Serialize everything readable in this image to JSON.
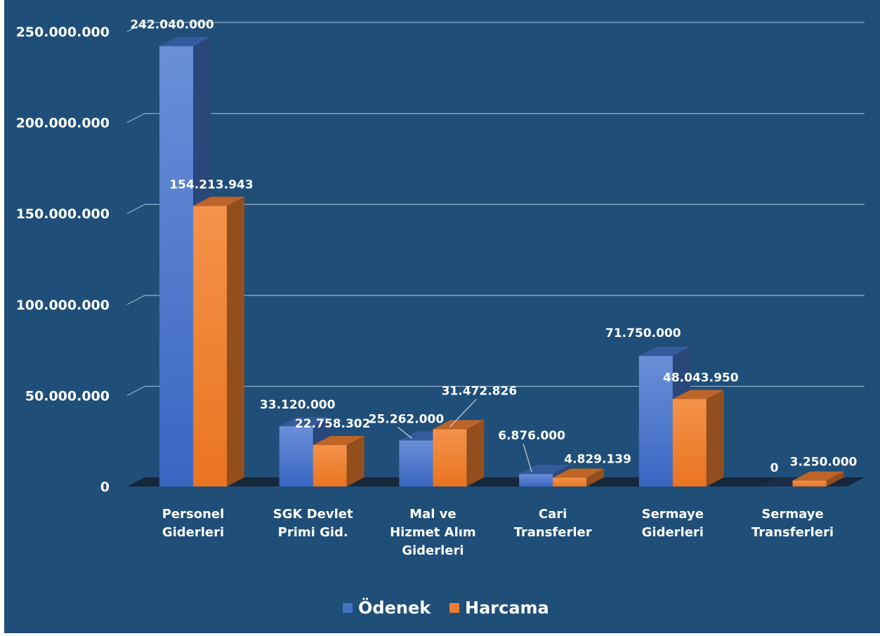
{
  "chart_data": {
    "type": "bar",
    "categories": [
      [
        "Personel",
        "Giderleri"
      ],
      [
        "SGK Devlet",
        "Primi Gid."
      ],
      [
        "Mal ve",
        "Hizmet Alım",
        "Giderleri"
      ],
      [
        "Cari",
        "Transferler"
      ],
      [
        "Sermaye",
        "Giderleri"
      ],
      [
        "Sermaye",
        "Transferleri"
      ]
    ],
    "series": [
      {
        "name": "Ödenek",
        "color": "#4472c4",
        "values": [
          242040000,
          33120000,
          25262000,
          6876000,
          71750000,
          0
        ],
        "labels": [
          "242.040.000",
          "33.120.000",
          "25.262.000",
          "6.876.000",
          "71.750.000",
          "0"
        ]
      },
      {
        "name": "Harcama",
        "color": "#ed7d31",
        "values": [
          154213943,
          22758302,
          31472826,
          4829139,
          48043950,
          3250000
        ],
        "labels": [
          "154.213.943",
          "22.758.302",
          "31.472.826",
          "4.829.139",
          "48.043.950",
          "3.250.000"
        ]
      }
    ],
    "ylim": [
      0,
      250000000
    ],
    "yticks": [
      0,
      50000000,
      100000000,
      150000000,
      200000000,
      250000000
    ],
    "ytick_labels": [
      "0",
      "50.000.000",
      "100.000.000",
      "150.000.000",
      "200.000.000",
      "250.000.000"
    ],
    "grid": true,
    "legend_position": "bottom",
    "background": "#1f4e79",
    "style": "3d-clustered-column"
  }
}
